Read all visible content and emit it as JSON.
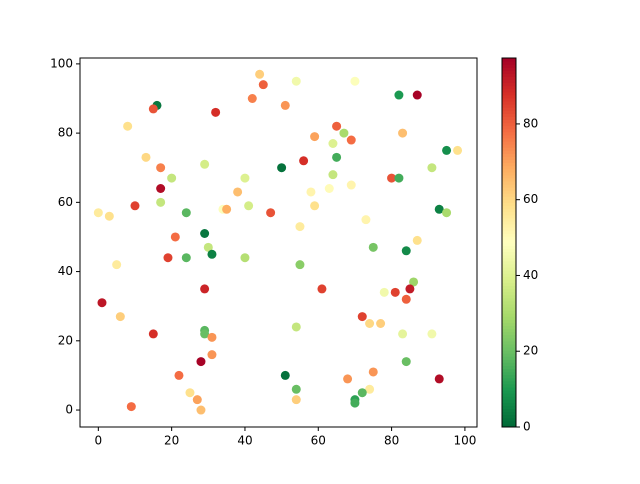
{
  "chart_data": {
    "type": "scatter",
    "colormap": "RdYlGn_r",
    "x": [
      44,
      45,
      54,
      70,
      16,
      15,
      42,
      51,
      87,
      82,
      32,
      8,
      65,
      59,
      67,
      69,
      83,
      64,
      95,
      98,
      13,
      65,
      17,
      29,
      50,
      56,
      91,
      20,
      40,
      80,
      82,
      17,
      58,
      63,
      69,
      64,
      38,
      17,
      10,
      34,
      35,
      41,
      59,
      0,
      3,
      24,
      47,
      73,
      93,
      95,
      55,
      29,
      21,
      87,
      30,
      75,
      31,
      84,
      19,
      24,
      40,
      5,
      55,
      86,
      78,
      81,
      85,
      29,
      61,
      84,
      1,
      6,
      72,
      74,
      77,
      54,
      29,
      29,
      15,
      31,
      83,
      91,
      31,
      28,
      84,
      22,
      51,
      75,
      68,
      93,
      54,
      74,
      25,
      72,
      27,
      54,
      70,
      70,
      9,
      28
    ],
    "y": [
      97,
      94,
      95,
      95,
      88,
      87,
      90,
      88,
      91,
      91,
      86,
      82,
      82,
      79,
      80,
      78,
      80,
      77,
      75,
      75,
      73,
      73,
      70,
      71,
      70,
      72,
      70,
      67,
      67,
      67,
      67,
      64,
      63,
      64,
      65,
      68,
      63,
      60,
      59,
      58,
      58,
      59,
      59,
      57,
      56,
      57,
      57,
      55,
      58,
      57,
      53,
      51,
      50,
      49,
      47,
      47,
      45,
      46,
      44,
      44,
      44,
      42,
      42,
      37,
      34,
      34,
      35,
      35,
      35,
      32,
      31,
      27,
      27,
      25,
      25,
      24,
      23,
      22,
      22,
      21,
      22,
      22,
      16,
      14,
      14,
      10,
      10,
      11,
      9,
      9,
      6,
      6,
      5,
      5,
      3,
      3,
      3,
      2,
      1,
      0
    ],
    "c": [
      62,
      80,
      45,
      48,
      3,
      82,
      75,
      72,
      97,
      10,
      88,
      58,
      80,
      70,
      30,
      78,
      65,
      40,
      8,
      58,
      60,
      15,
      75,
      38,
      2,
      88,
      35,
      35,
      40,
      82,
      15,
      95,
      52,
      50,
      52,
      35,
      65,
      35,
      85,
      48,
      68,
      38,
      58,
      55,
      58,
      18,
      82,
      52,
      5,
      30,
      55,
      3,
      78,
      58,
      35,
      22,
      5,
      7,
      85,
      18,
      32,
      55,
      25,
      28,
      45,
      85,
      92,
      90,
      85,
      80,
      93,
      62,
      85,
      60,
      62,
      35,
      18,
      20,
      88,
      72,
      42,
      45,
      72,
      97,
      20,
      78,
      2,
      72,
      72,
      95,
      20,
      55,
      58,
      18,
      70,
      62,
      12,
      15,
      78,
      65
    ],
    "xlim": [
      -5,
      103.3
    ],
    "ylim": [
      -4.9,
      101.7
    ],
    "clim": [
      0,
      97.4
    ],
    "xticks": [
      0,
      20,
      40,
      60,
      80,
      100
    ],
    "yticks": [
      0,
      20,
      40,
      60,
      80,
      100
    ],
    "cticks": [
      0,
      20,
      40,
      60,
      80
    ]
  }
}
